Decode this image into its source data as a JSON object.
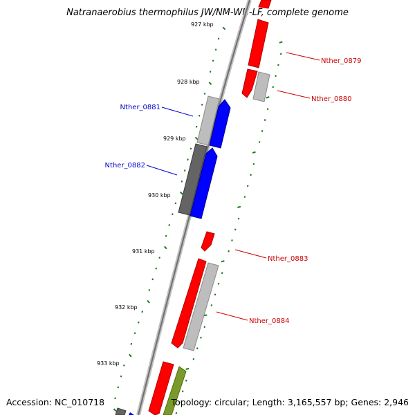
{
  "title": "Natranaerobius thermophilus JW/NM-WN-LF, complete genome",
  "footer": {
    "accession": "Accession: NC_010718",
    "summary": "Topology: circular; Length: 3,165,557 bp; Genes: 2,946"
  },
  "colors": {
    "forward_gene": "#ff0000",
    "reverse_gene": "#0000ff",
    "rna_gene": "#b8b8b8",
    "dark_feature": "#646464",
    "olive_feature": "#7a9a2a",
    "tick": "#1a7a1a",
    "backbone": "#808080",
    "label_forward": "#cc0000",
    "label_reverse": "#0000cc"
  },
  "ticks": [
    "927 kbp",
    "928 kbp",
    "929 kbp",
    "930 kbp",
    "931 kbp",
    "932 kbp",
    "933 kbp"
  ],
  "gene_labels": [
    {
      "name": "Nther_0879",
      "strand": "forward"
    },
    {
      "name": "Nther_0880",
      "strand": "forward"
    },
    {
      "name": "Nther_0881",
      "strand": "reverse"
    },
    {
      "name": "Nther_0882",
      "strand": "reverse"
    },
    {
      "name": "Nther_0883",
      "strand": "forward"
    },
    {
      "name": "Nther_0884",
      "strand": "forward"
    }
  ]
}
